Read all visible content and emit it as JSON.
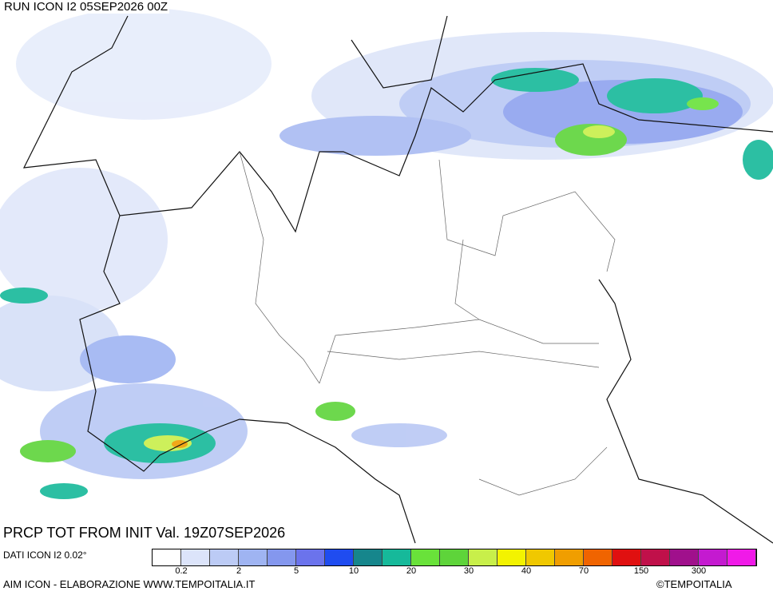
{
  "header": {
    "run": "RUN ICON I2 05SEP2026 00Z"
  },
  "footer": {
    "title": "PRCP TOT FROM INIT Val. 19Z07SEP2026",
    "source": "DATI ICON I2 0.02°",
    "credit": "AIM ICON - ELABORAZIONE WWW.TEMPOITALIA.IT",
    "copyright": "©TEMPOITALIA"
  },
  "legend": {
    "colors": [
      "#ffffff",
      "#dce4fa",
      "#bccbf5",
      "#9fb4f2",
      "#8497ee",
      "#6b73ec",
      "#1f4cf0",
      "#16868c",
      "#16b99a",
      "#69e23a",
      "#5ed43a",
      "#c8ef4a",
      "#f3f300",
      "#f0c800",
      "#f09e00",
      "#f06400",
      "#e01010",
      "#c0104a",
      "#a0108c",
      "#c41ad0",
      "#f01ae8"
    ],
    "labels": [
      "0.2",
      "2",
      "5",
      "10",
      "20",
      "30",
      "40",
      "70",
      "150",
      "300"
    ]
  }
}
